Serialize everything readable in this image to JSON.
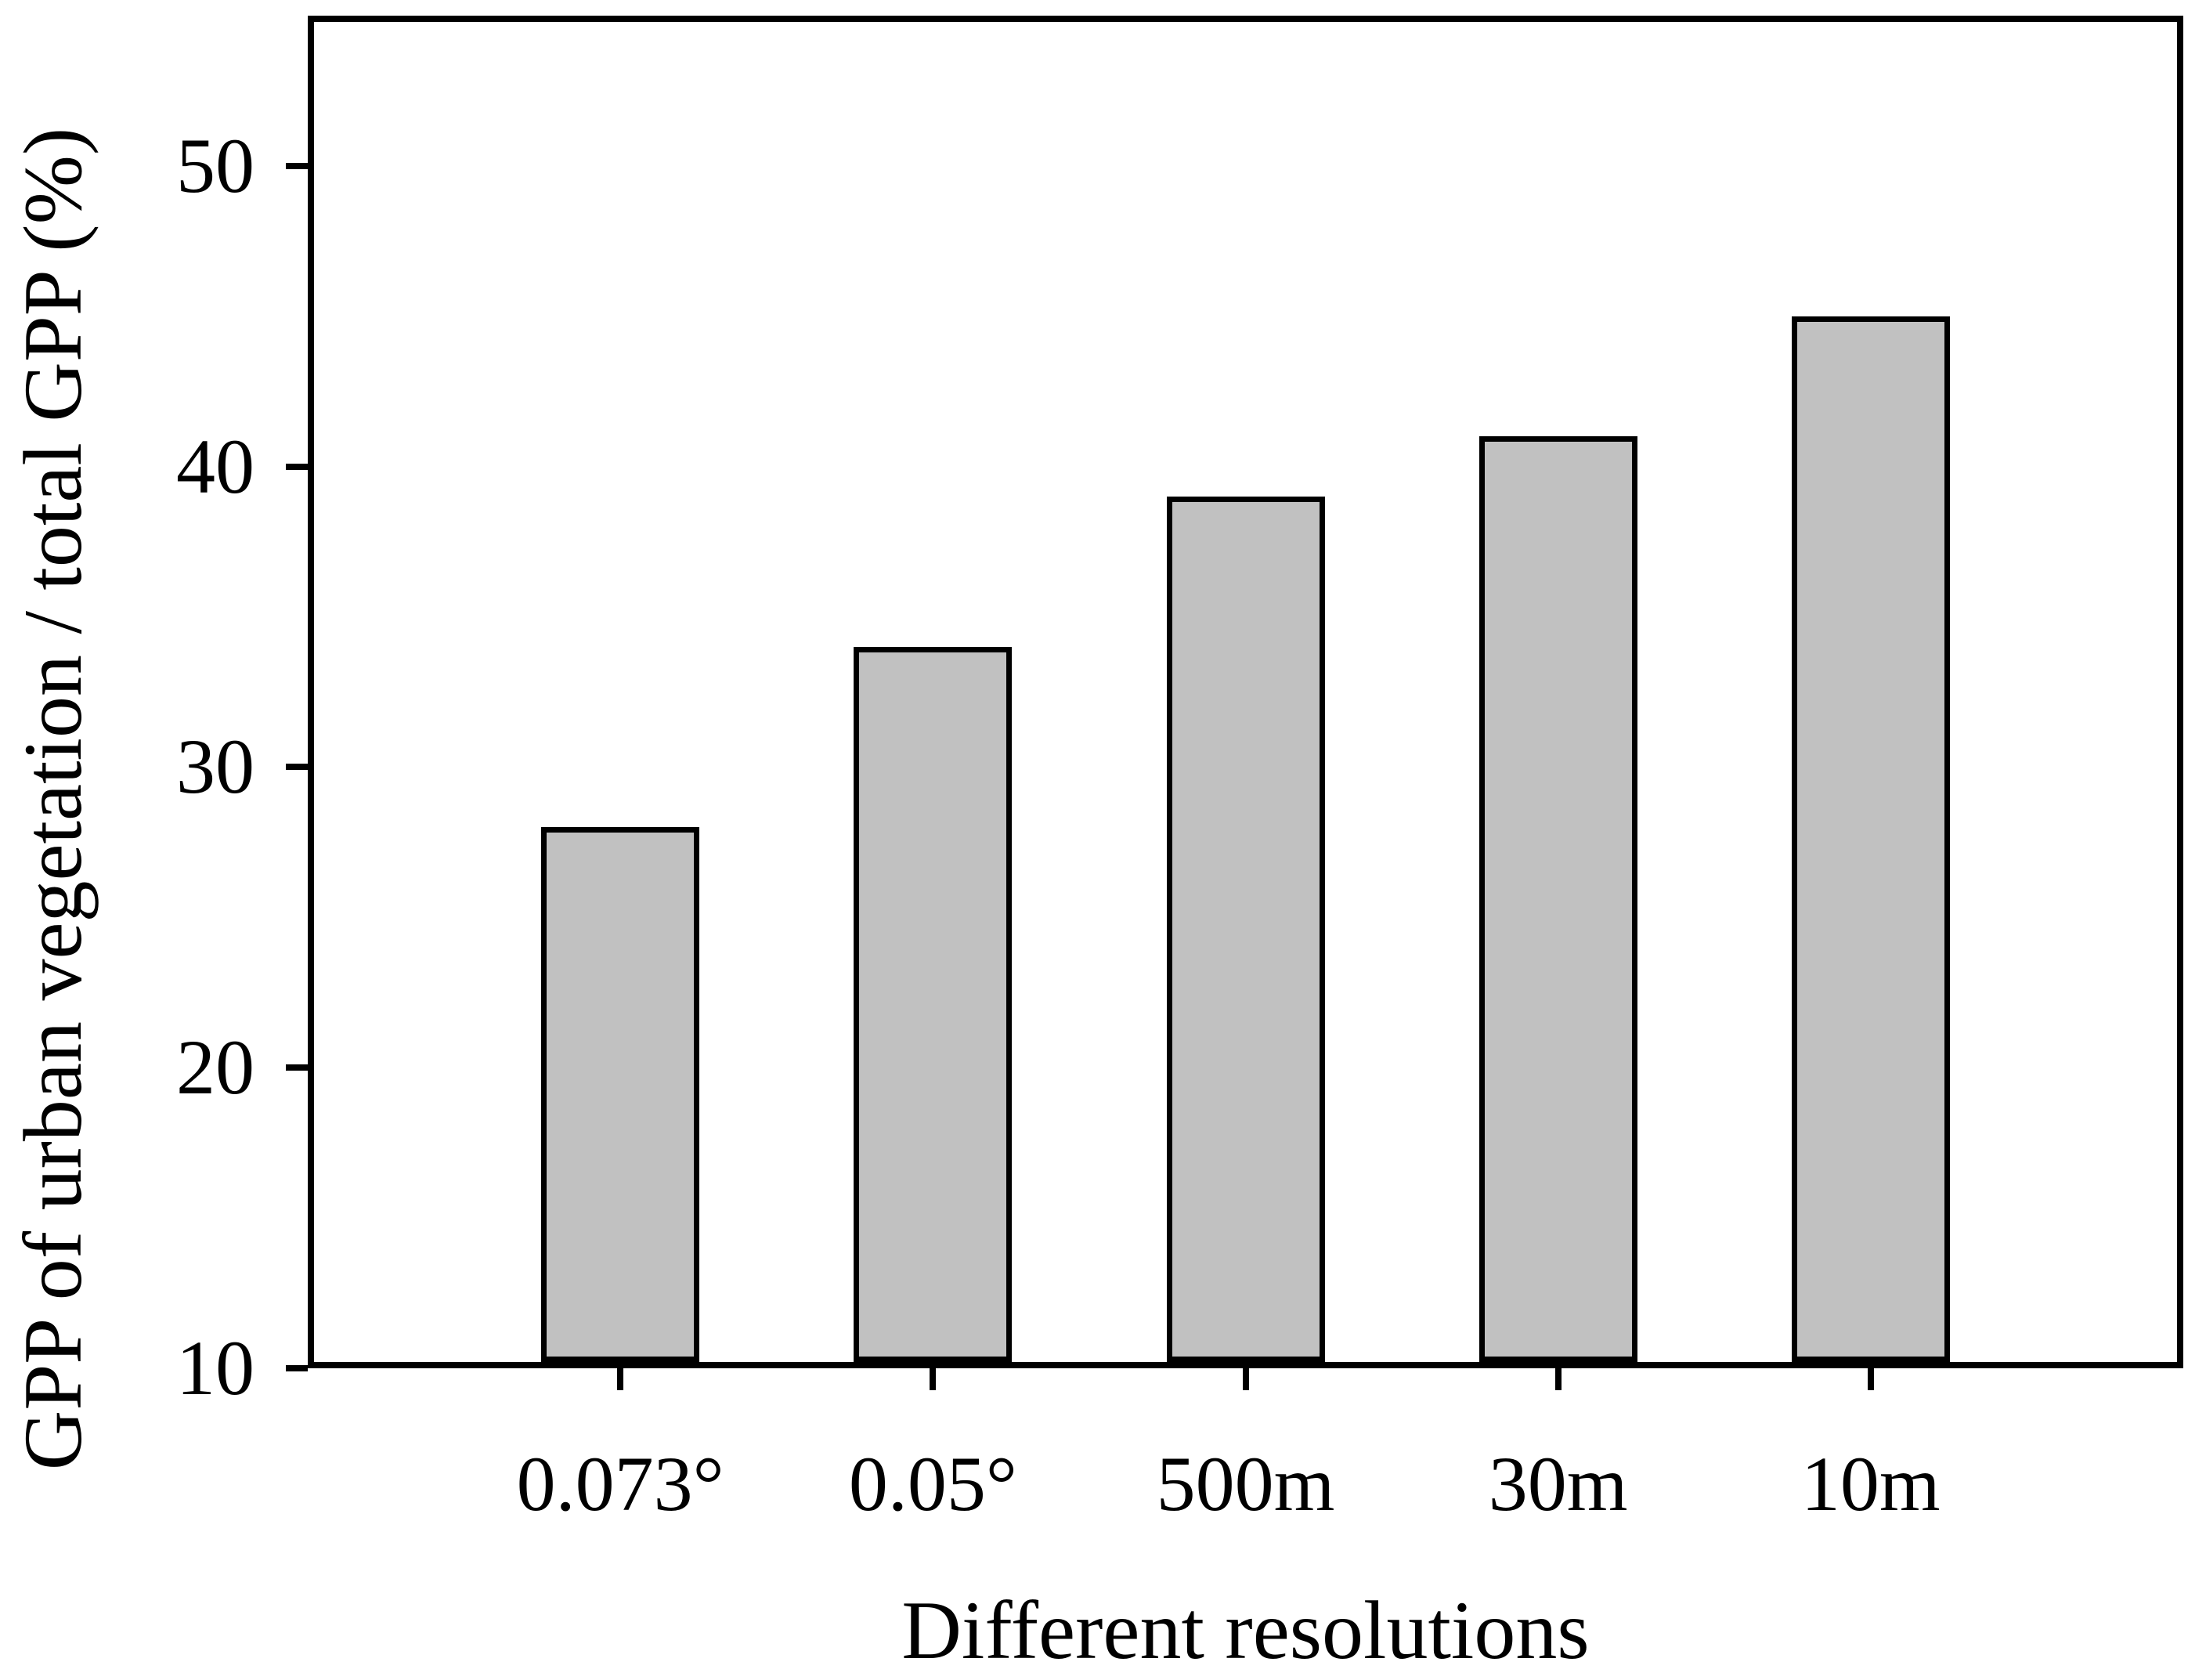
{
  "figure": {
    "background_color": "#ffffff",
    "text_color": "#000000"
  },
  "chart_data": {
    "type": "bar",
    "title": "",
    "xlabel": "Different resolutions",
    "ylabel": "GPP of urban vegetation / total GPP (%)",
    "categories": [
      "0.073°",
      "0.05°",
      "500m",
      "30m",
      "10m"
    ],
    "values": [
      28,
      34,
      39,
      41,
      45
    ],
    "value_unit": "%",
    "ylim": [
      10,
      55
    ],
    "yticks": [
      10,
      20,
      30,
      40,
      50
    ],
    "grid": false,
    "legend_position": "none",
    "frame": "full-box",
    "bar_fill_color": "#c1c1c1",
    "bar_border_color": "#000000",
    "axis_color": "#000000"
  }
}
